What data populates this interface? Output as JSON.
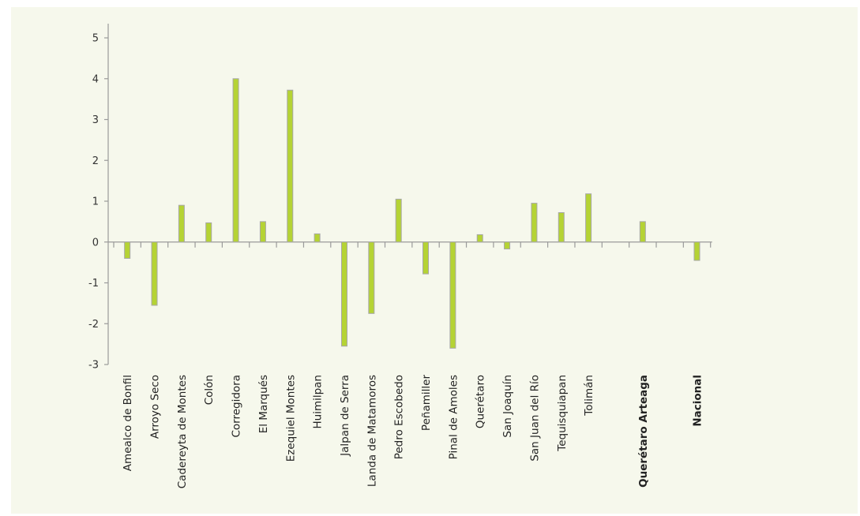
{
  "chart_data": {
    "type": "bar",
    "title": "",
    "xlabel": "",
    "ylabel": "",
    "ylim": [
      -3,
      5
    ],
    "yticks": [
      5,
      4,
      3,
      2,
      1,
      0,
      -1,
      -2,
      -3
    ],
    "ytick_labels": [
      "5",
      "4",
      "3",
      "2",
      "1",
      "0",
      "-1",
      "-2",
      "-3"
    ],
    "grid": false,
    "categories": [
      "Amealco de Bonfil",
      "Arroyo Seco",
      "Cadereyta de Montes",
      "Colón",
      "Corregidora",
      "El Marqués",
      "Ezequiel Montes",
      "Huimilpan",
      "Jalpan de Serra",
      "Landa de Matamoros",
      "Pedro Escobedo",
      "Peñamiller",
      "Pinal de Amoles",
      "Querétaro",
      "San Joaquín",
      "San Juan del Río",
      "Tequisquiapan",
      "Tolimán",
      "",
      "Querétaro Arteaga",
      "",
      "Nacional"
    ],
    "bold_categories": [
      "Querétaro Arteaga",
      "Nacional"
    ],
    "values": [
      -0.4,
      -1.55,
      0.9,
      0.47,
      4.0,
      0.5,
      3.72,
      0.2,
      -2.55,
      -1.75,
      1.05,
      -0.78,
      -2.6,
      0.18,
      -0.17,
      0.95,
      0.72,
      1.18,
      null,
      0.5,
      null,
      -0.45
    ],
    "bar_color": "#b5d334",
    "bar_edge_color": "#a7a7a7",
    "axis_color": "#9a9a9a"
  }
}
